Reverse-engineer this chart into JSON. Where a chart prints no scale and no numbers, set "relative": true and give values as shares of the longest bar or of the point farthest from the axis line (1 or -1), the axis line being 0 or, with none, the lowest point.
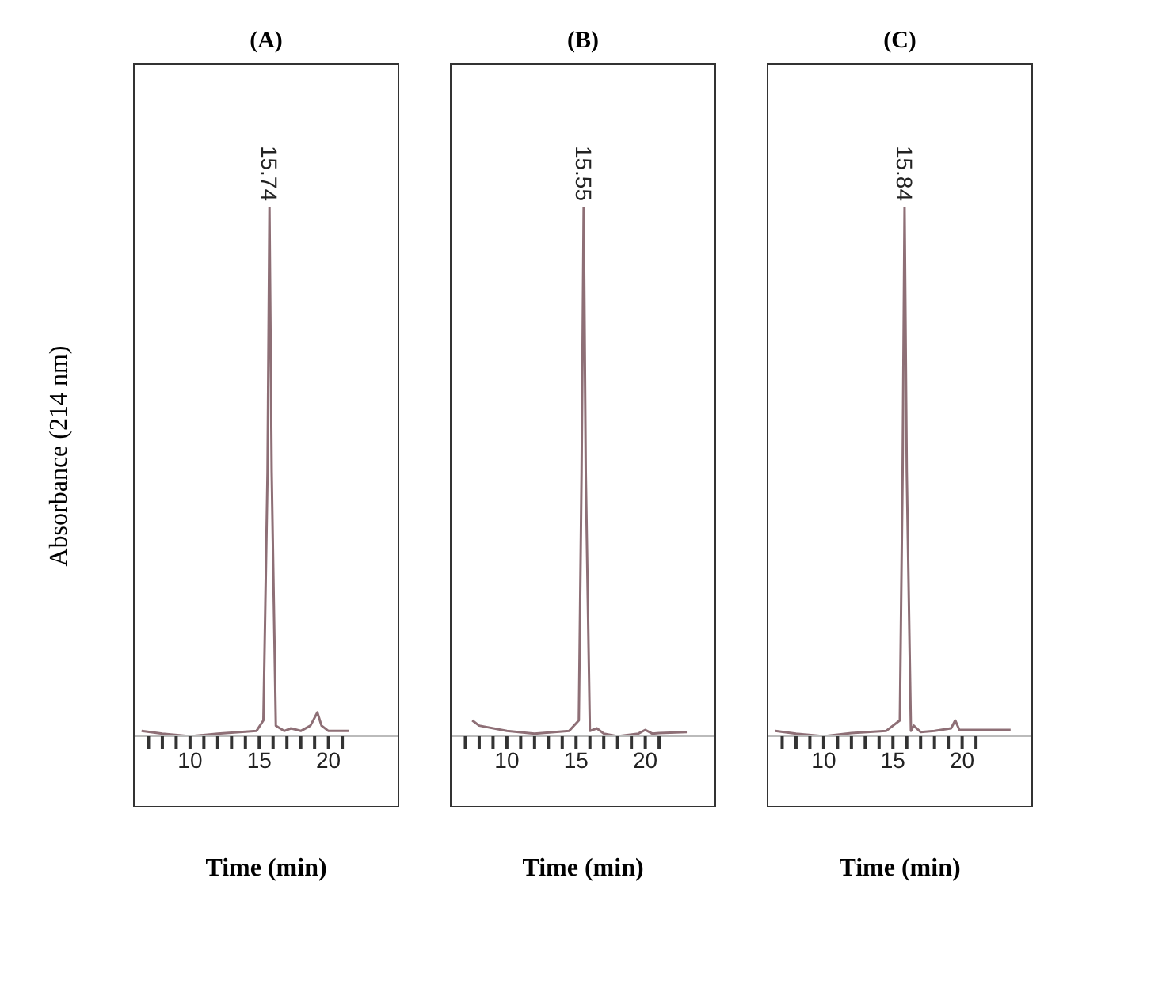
{
  "chart_data": [
    {
      "type": "line",
      "title": "(A)",
      "ylabel": "Absorbance (214 nm)",
      "xlabel": "Time (min)",
      "relative": true,
      "color": "#8e6f76",
      "grid": false,
      "legend": false,
      "xlim": [
        6,
        25
      ],
      "xticks": [
        {
          "value": 7,
          "label": null
        },
        {
          "value": 8,
          "label": null
        },
        {
          "value": 9,
          "label": null
        },
        10,
        {
          "value": 11,
          "label": null
        },
        {
          "value": 12,
          "label": null
        },
        {
          "value": 13,
          "label": null
        },
        {
          "value": 14,
          "label": null
        },
        15,
        {
          "value": 16,
          "label": null
        },
        {
          "value": 17,
          "label": null
        },
        {
          "value": 18,
          "label": null
        },
        {
          "value": 19,
          "label": null
        },
        20,
        {
          "value": 21,
          "label": null
        }
      ],
      "x": [
        6.5,
        8,
        10,
        12,
        14.8,
        15.3,
        15.6,
        15.74,
        15.9,
        16.2,
        16.8,
        17.3,
        18,
        18.7,
        19.2,
        19.5,
        20,
        21.5
      ],
      "values": [
        0.01,
        0.005,
        0,
        0.005,
        0.01,
        0.03,
        0.5,
        1,
        0.5,
        0.02,
        0.01,
        0.015,
        0.01,
        0.02,
        0.045,
        0.02,
        0.01,
        0.01
      ],
      "annotations": [
        {
          "text": "15.74",
          "x": 15.74,
          "y": 1
        }
      ]
    },
    {
      "type": "line",
      "title": "(B)",
      "xlabel": "Time (min)",
      "relative": true,
      "color": "#8e6f76",
      "grid": false,
      "legend": false,
      "xlim": [
        6,
        25
      ],
      "xticks": [
        {
          "value": 7,
          "label": null
        },
        {
          "value": 8,
          "label": null
        },
        {
          "value": 9,
          "label": null
        },
        10,
        {
          "value": 11,
          "label": null
        },
        {
          "value": 12,
          "label": null
        },
        {
          "value": 13,
          "label": null
        },
        {
          "value": 14,
          "label": null
        },
        15,
        {
          "value": 16,
          "label": null
        },
        {
          "value": 17,
          "label": null
        },
        {
          "value": 18,
          "label": null
        },
        {
          "value": 19,
          "label": null
        },
        20,
        {
          "value": 21,
          "label": null
        }
      ],
      "x": [
        7.5,
        8,
        10,
        12,
        14.5,
        15.2,
        15.4,
        15.55,
        15.7,
        16,
        16.5,
        17,
        18,
        19.5,
        20,
        20.5,
        21,
        23
      ],
      "values": [
        0.03,
        0.02,
        0.01,
        0.005,
        0.01,
        0.03,
        0.5,
        1,
        0.5,
        0.01,
        0.015,
        0.005,
        0,
        0.005,
        0.012,
        0.005,
        0.006,
        0.008
      ],
      "annotations": [
        {
          "text": "15.55",
          "x": 15.55,
          "y": 1
        }
      ]
    },
    {
      "type": "line",
      "title": "(C)",
      "xlabel": "Time (min)",
      "relative": true,
      "color": "#8e6f76",
      "grid": false,
      "legend": false,
      "xlim": [
        6,
        25
      ],
      "xticks": [
        {
          "value": 7,
          "label": null
        },
        {
          "value": 8,
          "label": null
        },
        {
          "value": 9,
          "label": null
        },
        10,
        {
          "value": 11,
          "label": null
        },
        {
          "value": 12,
          "label": null
        },
        {
          "value": 13,
          "label": null
        },
        {
          "value": 14,
          "label": null
        },
        15,
        {
          "value": 16,
          "label": null
        },
        {
          "value": 17,
          "label": null
        },
        {
          "value": 18,
          "label": null
        },
        {
          "value": 19,
          "label": null
        },
        20,
        {
          "value": 21,
          "label": null
        }
      ],
      "x": [
        6.5,
        8,
        10,
        12,
        14.5,
        15.5,
        15.7,
        15.84,
        16,
        16.3,
        16.5,
        17,
        18,
        19.2,
        19.5,
        19.8,
        21,
        23.5
      ],
      "values": [
        0.01,
        0.005,
        0,
        0.006,
        0.01,
        0.03,
        0.5,
        1,
        0.5,
        0.01,
        0.02,
        0.008,
        0.01,
        0.015,
        0.03,
        0.012,
        0.012,
        0.012
      ],
      "annotations": [
        {
          "text": "15.84",
          "x": 15.84,
          "y": 1
        }
      ]
    }
  ]
}
